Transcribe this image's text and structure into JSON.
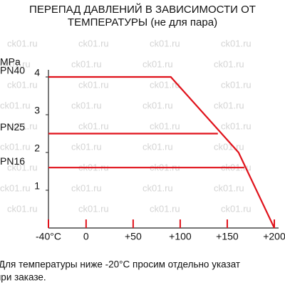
{
  "chart_data": {
    "type": "line",
    "title_lines": [
      "ПЕРЕПАД ДАВЛЕНИЙ В ЗАВИСИМОСТИ ОТ",
      "ТЕМПЕРАТУРЫ (не для пара)"
    ],
    "y_label": "MPa",
    "watermark": "ck01.ru",
    "xlim": [
      -40,
      200
    ],
    "xticks": [
      {
        "value": -40,
        "label": "-40°C"
      },
      0,
      {
        "value": 50,
        "label": "+50"
      },
      {
        "value": 100,
        "label": "+100"
      },
      {
        "value": 150,
        "label": "+150"
      },
      {
        "value": 200,
        "label": "+200"
      }
    ],
    "ylim": [
      0,
      4
    ],
    "yticks": [
      1,
      2,
      3,
      4
    ],
    "series": [
      {
        "name": "PN40",
        "color": "#e0121b",
        "x": [
          -40,
          90,
          162,
          200
        ],
        "values": [
          4,
          4,
          2,
          0
        ]
      },
      {
        "name": "PN25",
        "color": "#e0121b",
        "x": [
          -40,
          140
        ],
        "values": [
          2.5,
          2.5
        ]
      },
      {
        "name": "PN16",
        "color": "#e0121b",
        "x": [
          -40,
          168
        ],
        "values": [
          1.6,
          1.6
        ]
      }
    ],
    "note_lines": [
      "Для температуры ниже -20°C просим отдельно указат",
      "при заказе."
    ]
  }
}
